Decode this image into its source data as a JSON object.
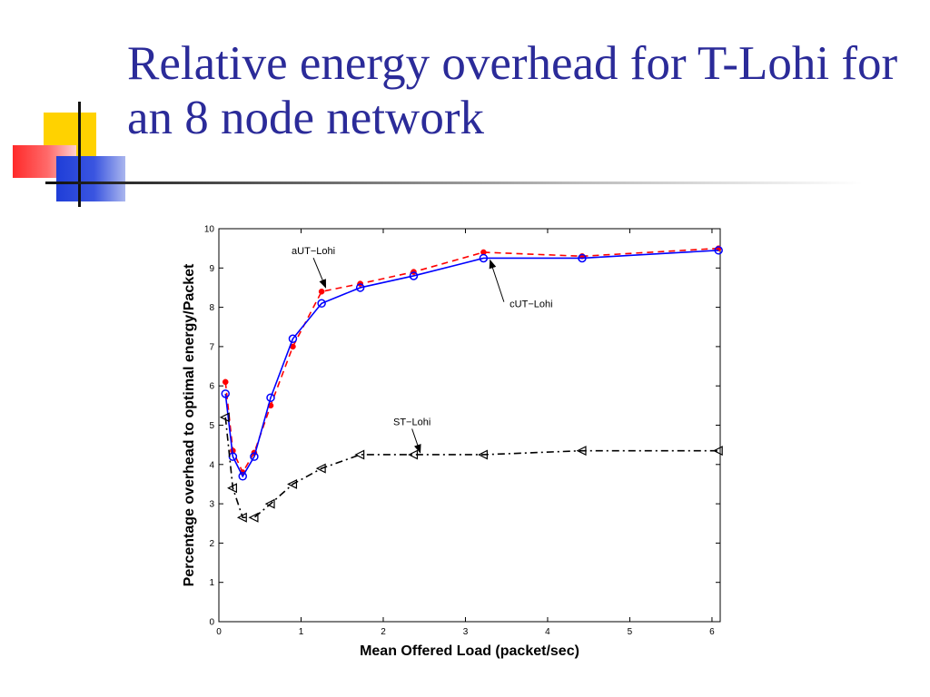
{
  "slide": {
    "title": "Relative energy overhead for T-Lohi for an 8 node network"
  },
  "chart_data": {
    "type": "line",
    "xlabel": "Mean Offered Load (packet/sec)",
    "ylabel": "Percentage overhead to optimal energy/Packet",
    "xlim": [
      0,
      6.1
    ],
    "ylim": [
      0,
      10
    ],
    "xticks": [
      0,
      1,
      2,
      3,
      4,
      5,
      6
    ],
    "yticks": [
      0,
      1,
      2,
      3,
      4,
      5,
      6,
      7,
      8,
      9,
      10
    ],
    "grid": false,
    "series": [
      {
        "name": "aUT−Lohi",
        "color": "#ff0000",
        "line": "dashed",
        "marker": "asterisk",
        "points": [
          [
            0.08,
            6.1
          ],
          [
            0.17,
            4.35
          ],
          [
            0.29,
            3.8
          ],
          [
            0.43,
            4.3
          ],
          [
            0.63,
            5.5
          ],
          [
            0.9,
            7.0
          ],
          [
            1.25,
            8.4
          ],
          [
            1.72,
            8.6
          ],
          [
            2.37,
            8.9
          ],
          [
            3.22,
            9.4
          ],
          [
            4.42,
            9.3
          ],
          [
            6.08,
            9.5
          ]
        ]
      },
      {
        "name": "cUT−Lohi",
        "color": "#0000ff",
        "line": "solid",
        "marker": "circle",
        "points": [
          [
            0.08,
            5.8
          ],
          [
            0.17,
            4.2
          ],
          [
            0.29,
            3.7
          ],
          [
            0.43,
            4.2
          ],
          [
            0.63,
            5.7
          ],
          [
            0.9,
            7.2
          ],
          [
            1.25,
            8.1
          ],
          [
            1.72,
            8.5
          ],
          [
            2.37,
            8.8
          ],
          [
            3.22,
            9.25
          ],
          [
            4.42,
            9.25
          ],
          [
            6.08,
            9.45
          ]
        ]
      },
      {
        "name": "ST−Lohi",
        "color": "#000000",
        "line": "dashdot",
        "marker": "triangle-left",
        "points": [
          [
            0.08,
            5.2
          ],
          [
            0.17,
            3.4
          ],
          [
            0.29,
            2.65
          ],
          [
            0.43,
            2.65
          ],
          [
            0.63,
            3.0
          ],
          [
            0.9,
            3.5
          ],
          [
            1.25,
            3.9
          ],
          [
            1.72,
            4.25
          ],
          [
            2.37,
            4.25
          ],
          [
            3.22,
            4.25
          ],
          [
            4.42,
            4.35
          ],
          [
            6.08,
            4.35
          ]
        ]
      }
    ],
    "annotations": [
      {
        "text": "aUT−Lohi",
        "x": 1.15,
        "y": 9.35,
        "arrow_to": [
          1.3,
          8.5
        ]
      },
      {
        "text": "cUT−Lohi",
        "x": 3.8,
        "y": 8.0,
        "arrow_to": [
          3.3,
          9.2
        ]
      },
      {
        "text": "ST−Lohi",
        "x": 2.35,
        "y": 5.0,
        "arrow_to": [
          2.45,
          4.3
        ]
      }
    ]
  }
}
